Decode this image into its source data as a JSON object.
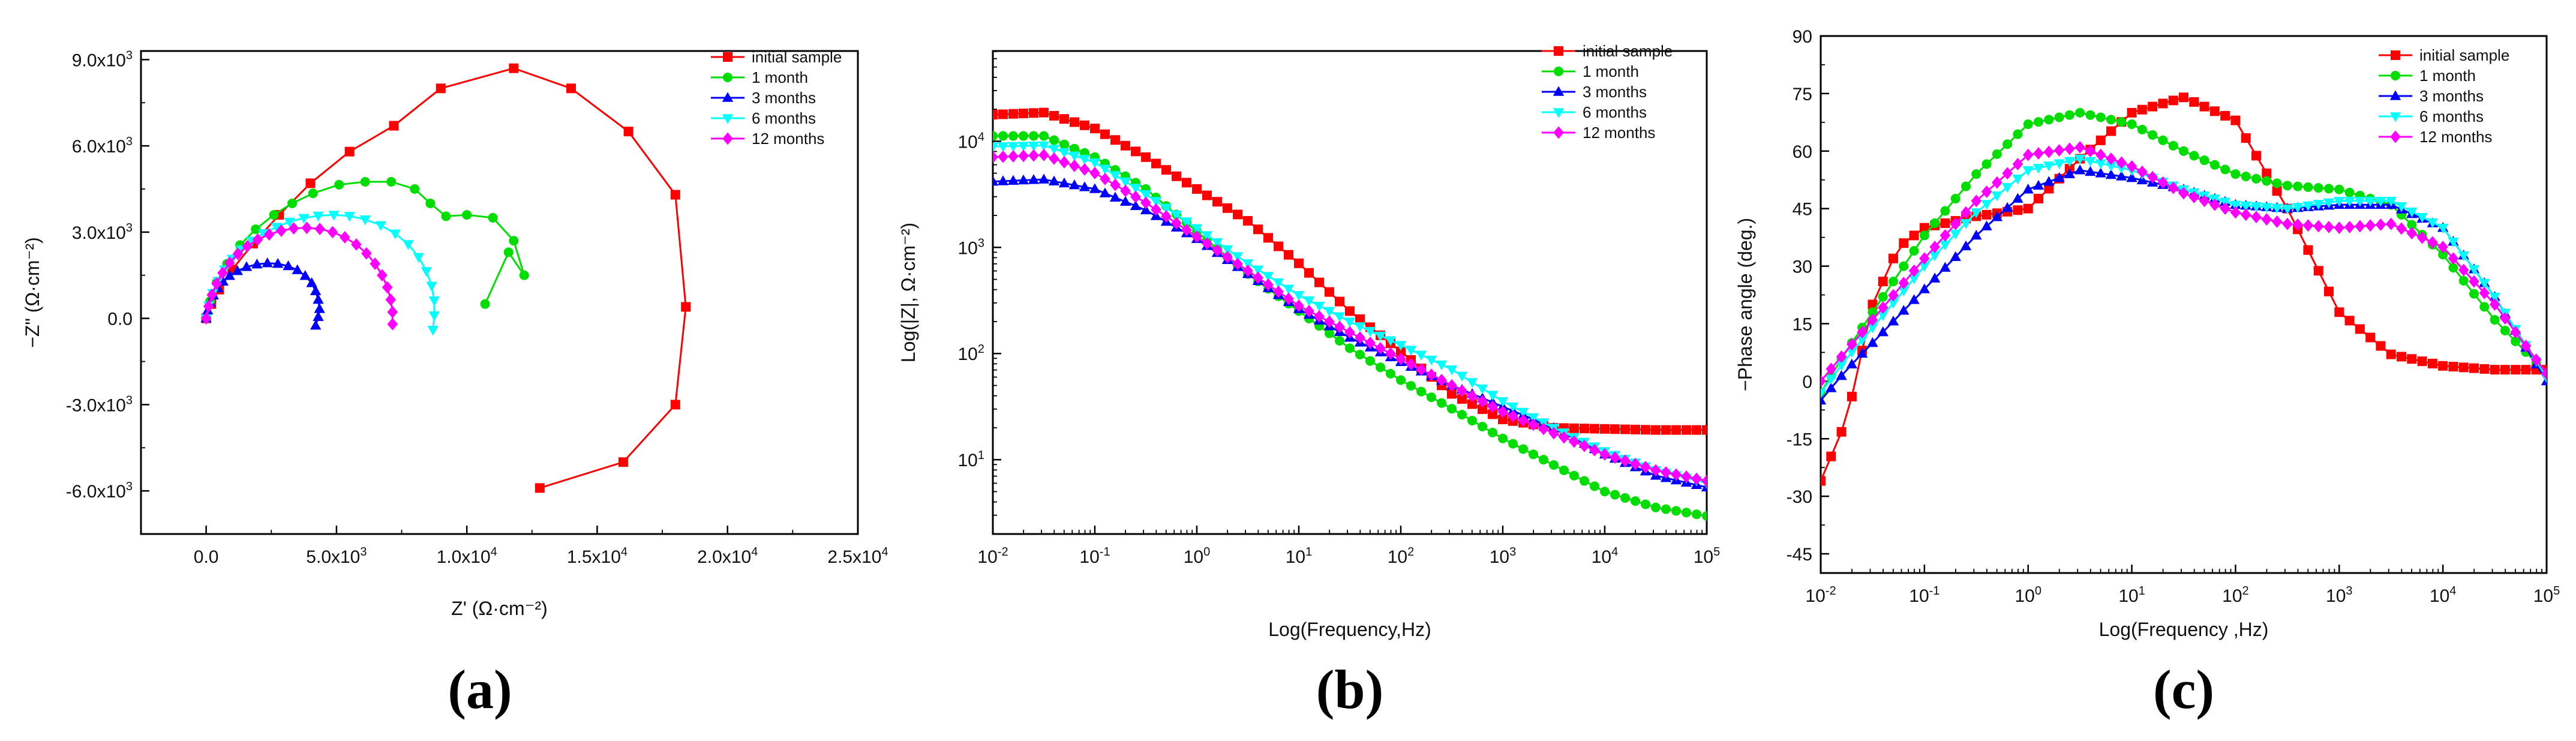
{
  "chart_data": [
    {
      "id": "a",
      "type": "line",
      "panel_label": "(a)",
      "xlabel": "Z' (Ω·cm⁻²)",
      "ylabel": "−Z\" (Ω·cm⁻²)",
      "xlim": [
        -2500,
        25000
      ],
      "ylim": [
        -7500,
        9300
      ],
      "xscale": "linear",
      "yscale": "linear",
      "xticks": [
        {
          "value": 0,
          "label": "0.0"
        },
        {
          "value": 5000,
          "label": "5.0x10",
          "sup": "3"
        },
        {
          "value": 10000,
          "label": "1.0x10",
          "sup": "4"
        },
        {
          "value": 15000,
          "label": "1.5x10",
          "sup": "4"
        },
        {
          "value": 20000,
          "label": "2.0x10",
          "sup": "4"
        },
        {
          "value": 25000,
          "label": "2.5x10",
          "sup": "4"
        }
      ],
      "yticks": [
        {
          "value": -6000,
          "label": "-6.0x10",
          "sup": "3"
        },
        {
          "value": -3000,
          "label": "-3.0x10",
          "sup": "3"
        },
        {
          "value": 0,
          "label": "0.0"
        },
        {
          "value": 3000,
          "label": "3.0x10",
          "sup": "3"
        },
        {
          "value": 6000,
          "label": "6.0x10",
          "sup": "3"
        },
        {
          "value": 9000,
          "label": "9.0x10",
          "sup": "3"
        }
      ],
      "legend_position": "top-right",
      "series": [
        {
          "name": "initial sample",
          "color": "#ff0000",
          "marker": "square",
          "x": [
            0,
            200,
            500,
            1000,
            1800,
            2800,
            4000,
            5500,
            7200,
            9000,
            11800,
            14000,
            16200,
            18000,
            18400,
            18000,
            16000,
            12800
          ],
          "y": [
            0,
            500,
            1000,
            1700,
            2600,
            3600,
            4700,
            5800,
            6700,
            8000,
            8700,
            8000,
            6500,
            4300,
            400,
            -3000,
            -5000,
            -5900
          ]
        },
        {
          "name": "1 month",
          "color": "#00dd00",
          "marker": "circle",
          "x": [
            0,
            150,
            400,
            800,
            1300,
            1900,
            2600,
            3300,
            4100,
            5100,
            6100,
            7100,
            8000,
            8600,
            9200,
            10000,
            11000,
            11800,
            12200,
            11600,
            10700
          ],
          "y": [
            0,
            600,
            1250,
            1900,
            2550,
            3100,
            3600,
            4000,
            4350,
            4650,
            4750,
            4750,
            4500,
            4000,
            3550,
            3600,
            3500,
            2700,
            1500,
            2300,
            500
          ]
        },
        {
          "name": "3 months",
          "color": "#0000ff",
          "marker": "triangle-up",
          "x": [
            0,
            60,
            150,
            280,
            450,
            650,
            900,
            1200,
            1550,
            1950,
            2350,
            2750,
            3150,
            3500,
            3800,
            4050,
            4200,
            4300,
            4350,
            4300,
            4200
          ],
          "y": [
            0,
            280,
            550,
            800,
            1050,
            1280,
            1480,
            1650,
            1790,
            1880,
            1920,
            1900,
            1820,
            1680,
            1480,
            1230,
            950,
            650,
            330,
            50,
            -250
          ]
        },
        {
          "name": "6 months",
          "color": "#00ffff",
          "marker": "triangle-down",
          "x": [
            0,
            100,
            250,
            450,
            700,
            1000,
            1350,
            1750,
            2200,
            2700,
            3200,
            3750,
            4300,
            4900,
            5500,
            6100,
            6700,
            7250,
            7750,
            8150,
            8450,
            8650,
            8750,
            8750,
            8700
          ],
          "y": [
            0,
            450,
            880,
            1300,
            1700,
            2070,
            2400,
            2700,
            2960,
            3180,
            3360,
            3490,
            3570,
            3600,
            3560,
            3440,
            3240,
            2950,
            2580,
            2130,
            1640,
            1130,
            620,
            100,
            -400
          ]
        },
        {
          "name": "12 months",
          "color": "#ff00ff",
          "marker": "diamond",
          "x": [
            0,
            90,
            220,
            400,
            630,
            900,
            1220,
            1580,
            1980,
            2420,
            2880,
            3360,
            3860,
            4360,
            4850,
            5320,
            5760,
            6150,
            6480,
            6750,
            6950,
            7080,
            7150,
            7150
          ],
          "y": [
            0,
            420,
            820,
            1210,
            1580,
            1930,
            2240,
            2510,
            2740,
            2920,
            3050,
            3130,
            3150,
            3110,
            3000,
            2820,
            2570,
            2260,
            1900,
            1500,
            1080,
            650,
            220,
            -200
          ]
        }
      ]
    },
    {
      "id": "b",
      "type": "line",
      "panel_label": "(b)",
      "xlabel": "Log(Frequency,Hz)",
      "ylabel": "Log(|Z|, Ω·cm⁻²)",
      "xlim": [
        -2,
        5
      ],
      "ylim": [
        0.3,
        4.85
      ],
      "xscale": "log10",
      "yscale": "log10",
      "xticks": [
        {
          "value": -2,
          "label": "10",
          "sup": "-2"
        },
        {
          "value": -1,
          "label": "10",
          "sup": "-1"
        },
        {
          "value": 0,
          "label": "10",
          "sup": "0"
        },
        {
          "value": 1,
          "label": "10",
          "sup": "1"
        },
        {
          "value": 2,
          "label": "10",
          "sup": "2"
        },
        {
          "value": 3,
          "label": "10",
          "sup": "3"
        },
        {
          "value": 4,
          "label": "10",
          "sup": "4"
        },
        {
          "value": 5,
          "label": "10",
          "sup": "5"
        }
      ],
      "yticks": [
        {
          "value": 1,
          "label": "10",
          "sup": "1"
        },
        {
          "value": 2,
          "label": "10",
          "sup": "2"
        },
        {
          "value": 3,
          "label": "10",
          "sup": "3"
        },
        {
          "value": 4,
          "label": "10",
          "sup": "4"
        }
      ],
      "legend_position": "top-right",
      "series": [
        {
          "name": "initial sample",
          "color": "#ff0000",
          "marker": "square",
          "logx": [
            -2,
            -1.5,
            -1,
            -0.5,
            0,
            0.5,
            1,
            1.5,
            2,
            2.5,
            3,
            3.5,
            4,
            4.5,
            5
          ],
          "logy": [
            4.25,
            4.27,
            4.12,
            3.85,
            3.55,
            3.25,
            2.85,
            2.4,
            2.02,
            1.62,
            1.38,
            1.3,
            1.29,
            1.28,
            1.28
          ]
        },
        {
          "name": "1 month",
          "color": "#00dd00",
          "marker": "circle",
          "logx": [
            -2,
            -1.5,
            -1,
            -0.5,
            0,
            0.5,
            1,
            1.5,
            2,
            2.5,
            3,
            3.5,
            4,
            4.5,
            5
          ],
          "logy": [
            4.05,
            4.05,
            3.85,
            3.55,
            3.15,
            2.75,
            2.4,
            2.05,
            1.75,
            1.48,
            1.2,
            0.95,
            0.7,
            0.55,
            0.47
          ]
        },
        {
          "name": "3 months",
          "color": "#0000ff",
          "marker": "triangle-up",
          "logx": [
            -2,
            -1.5,
            -1,
            -0.5,
            0,
            0.5,
            1,
            1.5,
            2,
            2.5,
            3,
            3.5,
            4,
            4.5,
            5
          ],
          "logy": [
            3.62,
            3.64,
            3.55,
            3.35,
            3.08,
            2.75,
            2.42,
            2.15,
            1.92,
            1.7,
            1.5,
            1.3,
            1.05,
            0.85,
            0.74
          ]
        },
        {
          "name": "6 months",
          "color": "#00ffff",
          "marker": "triangle-down",
          "logx": [
            -2,
            -1.5,
            -1,
            -0.5,
            0,
            0.5,
            1,
            1.5,
            2,
            2.5,
            3,
            3.5,
            4,
            4.5,
            5
          ],
          "logy": [
            3.95,
            3.96,
            3.8,
            3.5,
            3.18,
            2.85,
            2.55,
            2.3,
            2.08,
            1.85,
            1.55,
            1.3,
            1.08,
            0.9,
            0.78
          ]
        },
        {
          "name": "12 months",
          "color": "#ff00ff",
          "marker": "diamond",
          "logx": [
            -2,
            -1.5,
            -1,
            -0.5,
            0,
            0.5,
            1,
            1.5,
            2,
            2.5,
            3,
            3.5,
            4,
            4.5,
            5
          ],
          "logy": [
            3.85,
            3.87,
            3.7,
            3.42,
            3.1,
            2.78,
            2.45,
            2.2,
            1.95,
            1.7,
            1.45,
            1.25,
            1.05,
            0.9,
            0.8
          ]
        }
      ]
    },
    {
      "id": "c",
      "type": "line",
      "panel_label": "(c)",
      "xlabel": "Log(Frequency ,Hz)",
      "ylabel": "−Phase angle (deg.)",
      "xlim": [
        -2,
        5
      ],
      "ylim": [
        -50,
        90
      ],
      "xscale": "log10",
      "yscale": "linear",
      "xticks": [
        {
          "value": -2,
          "label": "10",
          "sup": "-2"
        },
        {
          "value": -1,
          "label": "10",
          "sup": "-1"
        },
        {
          "value": 0,
          "label": "10",
          "sup": "0"
        },
        {
          "value": 1,
          "label": "10",
          "sup": "1"
        },
        {
          "value": 2,
          "label": "10",
          "sup": "2"
        },
        {
          "value": 3,
          "label": "10",
          "sup": "3"
        },
        {
          "value": 4,
          "label": "10",
          "sup": "4"
        },
        {
          "value": 5,
          "label": "10",
          "sup": "5"
        }
      ],
      "yticks": [
        {
          "value": -45,
          "label": "-45"
        },
        {
          "value": -30,
          "label": "-30"
        },
        {
          "value": -15,
          "label": "-15"
        },
        {
          "value": 0,
          "label": "0"
        },
        {
          "value": 15,
          "label": "15"
        },
        {
          "value": 30,
          "label": "30"
        },
        {
          "value": 45,
          "label": "45"
        },
        {
          "value": 60,
          "label": "60"
        },
        {
          "value": 75,
          "label": "75"
        },
        {
          "value": 90,
          "label": "90"
        }
      ],
      "legend_position": "top-right",
      "series": [
        {
          "name": "initial sample",
          "color": "#ff0000",
          "marker": "square",
          "logx": [
            -2,
            -1.75,
            -1.5,
            -1.25,
            -1,
            -0.5,
            0,
            0.5,
            1,
            1.5,
            2,
            2.5,
            3,
            3.5,
            4,
            4.5,
            5
          ],
          "y": [
            -26,
            -10,
            20,
            35,
            40,
            43,
            45,
            58,
            70,
            74,
            68,
            45,
            18,
            7,
            4,
            3,
            3
          ]
        },
        {
          "name": "1 month",
          "color": "#00dd00",
          "marker": "circle",
          "logx": [
            -2,
            -1.75,
            -1.5,
            -1.25,
            -1,
            -0.5,
            0,
            0.5,
            1,
            1.5,
            2,
            2.5,
            3,
            3.5,
            4,
            4.5,
            5
          ],
          "y": [
            -3,
            8,
            18,
            28,
            38,
            54,
            67,
            70,
            67,
            60,
            54,
            51,
            50,
            46,
            33,
            16,
            2
          ]
        },
        {
          "name": "3 months",
          "color": "#0000ff",
          "marker": "triangle-up",
          "logx": [
            -2,
            -1.75,
            -1.5,
            -1.25,
            -1,
            -0.5,
            0,
            0.5,
            1,
            1.5,
            2,
            2.5,
            3,
            3.5,
            4,
            4.5,
            5
          ],
          "y": [
            -5,
            3,
            10,
            17,
            24,
            38,
            50,
            55,
            53,
            50,
            46,
            45,
            46,
            46,
            40,
            22,
            0
          ]
        },
        {
          "name": "6 months",
          "color": "#00ffff",
          "marker": "triangle-down",
          "logx": [
            -2,
            -1.75,
            -1.5,
            -1.25,
            -1,
            -0.5,
            0,
            0.5,
            1,
            1.5,
            2,
            2.5,
            3,
            3.5,
            4,
            4.5,
            5
          ],
          "y": [
            -3,
            6,
            14,
            22,
            30,
            44,
            55,
            58,
            55,
            50,
            46,
            45,
            47,
            47,
            40,
            22,
            1
          ]
        },
        {
          "name": "12 months",
          "color": "#ff00ff",
          "marker": "diamond",
          "logx": [
            -2,
            -1.75,
            -1.5,
            -1.25,
            -1,
            -0.5,
            0,
            0.5,
            1,
            1.5,
            2,
            2.5,
            3,
            3.5,
            4,
            4.5,
            5
          ],
          "y": [
            0,
            8,
            16,
            24,
            32,
            47,
            59,
            61,
            56,
            49,
            44,
            41,
            40,
            41,
            35,
            20,
            2
          ]
        }
      ]
    }
  ]
}
